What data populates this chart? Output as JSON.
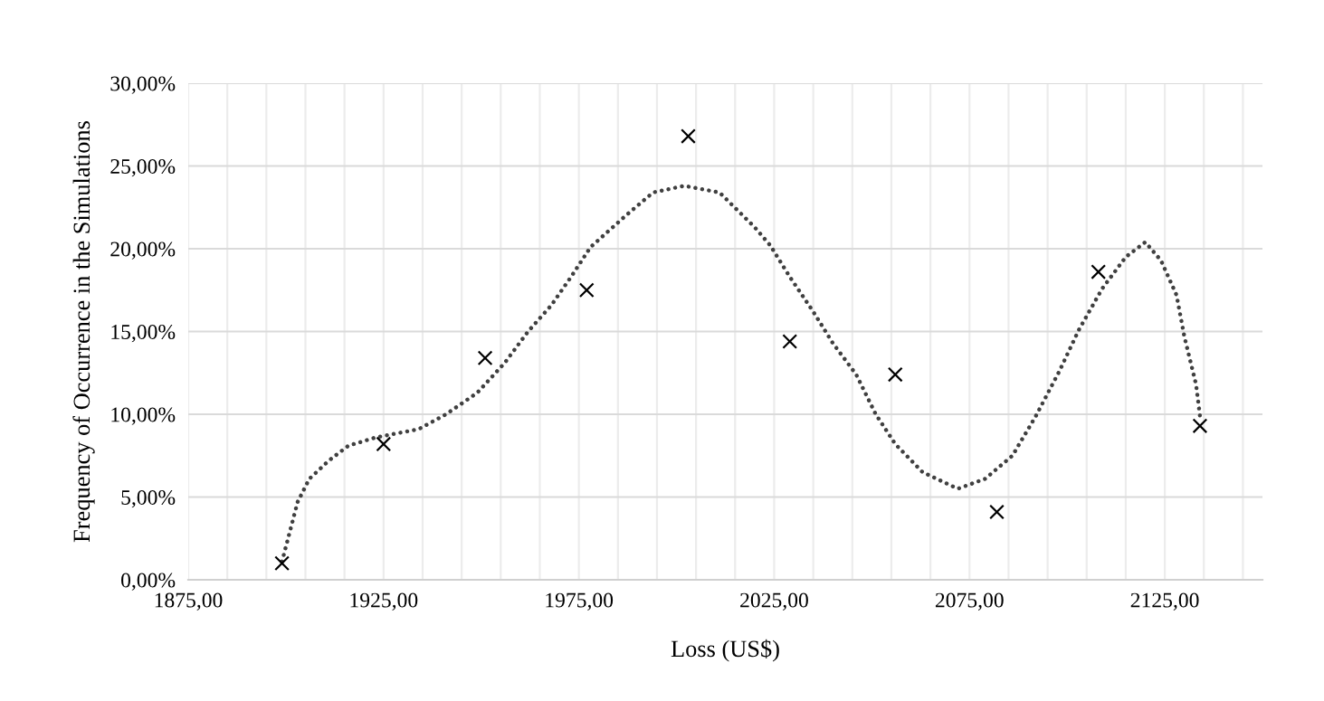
{
  "chart_data": {
    "type": "scatter",
    "xlabel": "Loss (US$)",
    "ylabel": "Frequency of Occurrence in the Simulations",
    "xlim": [
      1875,
      2150
    ],
    "xticks": [
      {
        "value": 1875,
        "label": "1875,00"
      },
      {
        "value": 1885,
        "label": null
      },
      {
        "value": 1895,
        "label": null
      },
      {
        "value": 1905,
        "label": null
      },
      {
        "value": 1915,
        "label": null
      },
      {
        "value": 1925,
        "label": "1925,00"
      },
      {
        "value": 1935,
        "label": null
      },
      {
        "value": 1945,
        "label": null
      },
      {
        "value": 1955,
        "label": null
      },
      {
        "value": 1965,
        "label": null
      },
      {
        "value": 1975,
        "label": "1975,00"
      },
      {
        "value": 1985,
        "label": null
      },
      {
        "value": 1995,
        "label": null
      },
      {
        "value": 2005,
        "label": null
      },
      {
        "value": 2015,
        "label": null
      },
      {
        "value": 2025,
        "label": "2025,00"
      },
      {
        "value": 2035,
        "label": null
      },
      {
        "value": 2045,
        "label": null
      },
      {
        "value": 2055,
        "label": null
      },
      {
        "value": 2065,
        "label": null
      },
      {
        "value": 2075,
        "label": "2075,00"
      },
      {
        "value": 2085,
        "label": null
      },
      {
        "value": 2095,
        "label": null
      },
      {
        "value": 2105,
        "label": null
      },
      {
        "value": 2115,
        "label": null
      },
      {
        "value": 2125,
        "label": "2125,00"
      },
      {
        "value": 2135,
        "label": null
      },
      {
        "value": 2145,
        "label": null
      }
    ],
    "ylim": [
      0,
      30
    ],
    "yticks": [
      {
        "value": 0,
        "label": "0,00%"
      },
      {
        "value": 5,
        "label": "5,00%"
      },
      {
        "value": 10,
        "label": "10,00%"
      },
      {
        "value": 15,
        "label": "15,00%"
      },
      {
        "value": 20,
        "label": "20,00%"
      },
      {
        "value": 25,
        "label": "25,00%"
      },
      {
        "value": 30,
        "label": "30,00%"
      }
    ],
    "grid": true,
    "series": [
      {
        "color": "#000000",
        "marker": "cross",
        "x": [
          1899,
          1925,
          1951,
          1977,
          2003,
          2029,
          2056,
          2082,
          2108,
          2134
        ],
        "values": [
          1.0,
          8.2,
          13.4,
          17.5,
          26.8,
          14.4,
          12.4,
          4.1,
          18.6,
          9.3
        ]
      },
      {
        "type": "line",
        "color": "#404040",
        "marker": "none",
        "line_style": "dotted",
        "x": [
          1899,
          1903,
          1906,
          1911,
          1916,
          1923,
          1934,
          1941,
          1949,
          1956,
          1962,
          1968,
          1973,
          1978,
          1987,
          1994,
          2002,
          2011,
          2020,
          2024,
          2029,
          2035,
          2040,
          2046,
          2051,
          2056,
          2063,
          2072,
          2079,
          2086,
          2092,
          2098,
          2103,
          2109,
          2115,
          2120,
          2124,
          2128,
          2130,
          2133,
          2134
        ],
        "values": [
          1.1,
          4.7,
          6.1,
          7.2,
          8.1,
          8.6,
          9.1,
          10.0,
          11.3,
          13.1,
          15.0,
          16.6,
          18.3,
          20.1,
          22.0,
          23.4,
          23.8,
          23.4,
          21.3,
          20.2,
          18.3,
          16.2,
          14.3,
          12.4,
          10.0,
          8.2,
          6.5,
          5.5,
          6.1,
          7.5,
          9.9,
          12.6,
          15.1,
          17.6,
          19.5,
          20.4,
          19.3,
          17.2,
          14.7,
          11.8,
          9.9
        ]
      }
    ]
  }
}
